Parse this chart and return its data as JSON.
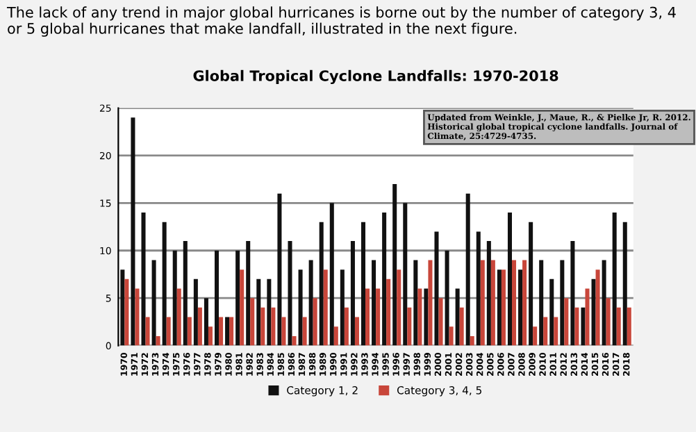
{
  "chart_data": {
    "type": "bar",
    "title": "Global Tropical Cyclone Landfalls: 1970-2018",
    "categories": [
      "1970",
      "1971",
      "1972",
      "1973",
      "1974",
      "1975",
      "1976",
      "1977",
      "1978",
      "1979",
      "1980",
      "1981",
      "1982",
      "1983",
      "1984",
      "1985",
      "1986",
      "1987",
      "1988",
      "1989",
      "1990",
      "1991",
      "1992",
      "1993",
      "1994",
      "1995",
      "1996",
      "1997",
      "1998",
      "1999",
      "2000",
      "2001",
      "2002",
      "2003",
      "2004",
      "2005",
      "2006",
      "2007",
      "2008",
      "2009",
      "2010",
      "2011",
      "2012",
      "2013",
      "2014",
      "2015",
      "2016",
      "2017",
      "2018"
    ],
    "series": [
      {
        "name": "Category 1, 2",
        "color": "#111111",
        "values": [
          8,
          24,
          14,
          9,
          13,
          10,
          11,
          7,
          5,
          10,
          3,
          10,
          11,
          7,
          7,
          16,
          11,
          8,
          9,
          13,
          15,
          8,
          11,
          13,
          9,
          14,
          17,
          15,
          9,
          6,
          12,
          10,
          6,
          16,
          12,
          11,
          8,
          14,
          8,
          13,
          9,
          7,
          9,
          11,
          4,
          7,
          9,
          14,
          13
        ]
      },
      {
        "name": "Category 3, 4, 5",
        "color": "#c8463a",
        "values": [
          7,
          6,
          3,
          1,
          3,
          6,
          3,
          4,
          2,
          3,
          3,
          8,
          5,
          4,
          4,
          3,
          1,
          3,
          5,
          8,
          2,
          4,
          3,
          6,
          6,
          7,
          8,
          4,
          6,
          9,
          5,
          2,
          4,
          1,
          9,
          9,
          8,
          9,
          9,
          2,
          3,
          3,
          5,
          4,
          6,
          8,
          5,
          4,
          4
        ]
      }
    ],
    "ylim": [
      0,
      25
    ],
    "yticks": [
      0,
      5,
      10,
      15,
      20,
      25
    ],
    "grid": "y",
    "legend": "bottom",
    "annotations": [
      "The lack of any trend in major global hurricanes is borne out by the number of category 3, 4 or 5 global hurricanes that make landfall, illustrated in the next figure.",
      "Updated from Weinkle, J., Maue, R., & Pielke Jr, R. 2012. Historical global tropical cyclone landfalls. Journal of Climate, 25:4729-4735."
    ]
  }
}
